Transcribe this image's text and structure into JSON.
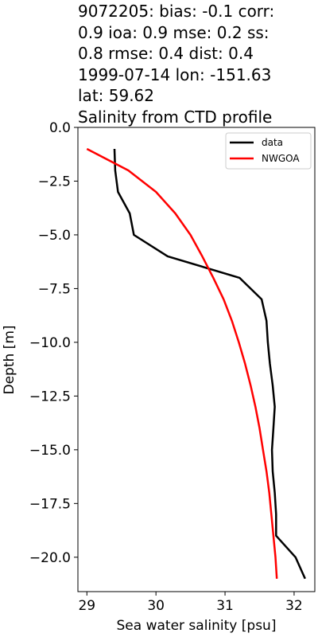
{
  "title": {
    "line1": "9072205: bias: -0.1  corr:",
    "line2": "0.9  ioa: 0.9  mse: 0.2  ss:",
    "line3": "0.8  rmse: 0.4  dist: 0.4",
    "line4": "1999-07-14 lon: -151.63",
    "line5": "lat: 59.62",
    "line6": "Salinity from CTD profile"
  },
  "chart_data": {
    "type": "line",
    "xlabel": "Sea water salinity [psu]",
    "ylabel": "Depth [m]",
    "xlim": [
      28.87,
      32.3
    ],
    "ylim": [
      -21.6,
      0
    ],
    "xticks": [
      29,
      30,
      31,
      32
    ],
    "yticks": [
      0.0,
      -2.5,
      -5.0,
      -7.5,
      -10.0,
      -12.5,
      -15.0,
      -17.5,
      -20.0
    ],
    "xtick_labels": [
      "29",
      "30",
      "31",
      "32"
    ],
    "ytick_labels": [
      "0.0",
      "−2.5",
      "−5.0",
      "−7.5",
      "−10.0",
      "−12.5",
      "−15.0",
      "−17.5",
      "−20.0"
    ],
    "legend_position": "top-right",
    "grid": false,
    "series": [
      {
        "name": "data",
        "color": "#000000",
        "points": [
          [
            29.4,
            -1
          ],
          [
            29.41,
            -2
          ],
          [
            29.45,
            -3
          ],
          [
            29.62,
            -4
          ],
          [
            29.68,
            -5
          ],
          [
            30.17,
            -6
          ],
          [
            31.21,
            -7
          ],
          [
            31.53,
            -8
          ],
          [
            31.6,
            -9
          ],
          [
            31.62,
            -10
          ],
          [
            31.65,
            -11
          ],
          [
            31.69,
            -12
          ],
          [
            31.72,
            -13
          ],
          [
            31.7,
            -14
          ],
          [
            31.68,
            -15
          ],
          [
            31.69,
            -16
          ],
          [
            31.72,
            -17
          ],
          [
            31.74,
            -18
          ],
          [
            31.74,
            -19
          ],
          [
            32.02,
            -20
          ],
          [
            32.16,
            -21
          ]
        ]
      },
      {
        "name": "NWGOA",
        "color": "#ff0000",
        "points": [
          [
            29.0,
            -1
          ],
          [
            29.6,
            -2
          ],
          [
            30.0,
            -3
          ],
          [
            30.28,
            -4
          ],
          [
            30.5,
            -5
          ],
          [
            30.67,
            -6
          ],
          [
            30.83,
            -7
          ],
          [
            30.98,
            -8
          ],
          [
            31.1,
            -9
          ],
          [
            31.2,
            -10
          ],
          [
            31.29,
            -11
          ],
          [
            31.37,
            -12
          ],
          [
            31.44,
            -13
          ],
          [
            31.5,
            -14
          ],
          [
            31.55,
            -15
          ],
          [
            31.6,
            -16
          ],
          [
            31.64,
            -17
          ],
          [
            31.67,
            -18
          ],
          [
            31.7,
            -19
          ],
          [
            31.73,
            -20
          ],
          [
            31.75,
            -21
          ]
        ]
      }
    ]
  }
}
